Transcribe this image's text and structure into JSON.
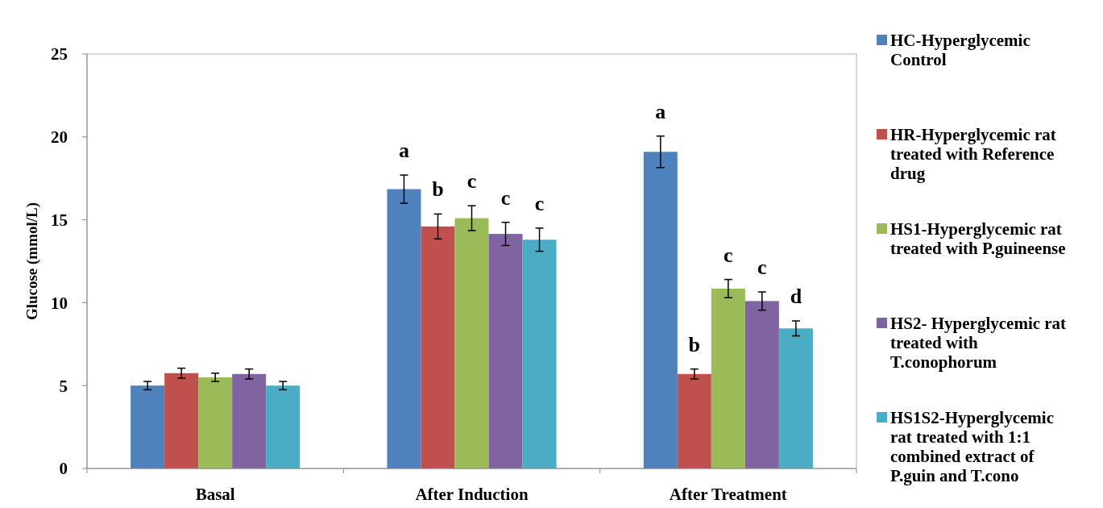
{
  "chart_data": {
    "type": "bar",
    "ylabel": "Glucose (mmol/L)",
    "categories": [
      "Basal",
      "After Induction",
      "After Treatment"
    ],
    "series": [
      {
        "name": "HC-Hyperglycemic Control",
        "color": "#4f81bd",
        "values": [
          5.0,
          16.85,
          19.1
        ],
        "errors": [
          0.25,
          0.85,
          0.95
        ],
        "value_labels": [
          null,
          "a",
          "a"
        ]
      },
      {
        "name": "HR-Hyperglycemic rat treated with Reference drug",
        "color": "#c0504d",
        "values": [
          5.75,
          14.6,
          5.7
        ],
        "errors": [
          0.3,
          0.75,
          0.3
        ],
        "value_labels": [
          null,
          "b",
          "b"
        ]
      },
      {
        "name": "HS1-Hyperglycemic rat treated with P.guineense",
        "color": "#9bbb59",
        "values": [
          5.5,
          15.1,
          10.85
        ],
        "errors": [
          0.25,
          0.75,
          0.55
        ],
        "value_labels": [
          null,
          "c",
          "c"
        ]
      },
      {
        "name": "HS2- Hyperglycemic rat treated with T.conophorum",
        "color": "#8064a2",
        "values": [
          5.7,
          14.15,
          10.1
        ],
        "errors": [
          0.3,
          0.7,
          0.55
        ],
        "value_labels": [
          null,
          "c",
          "c"
        ]
      },
      {
        "name": "HS1S2-Hyperglycemic rat treated with 1:1 combined extract of P.guin and T.cono",
        "color": "#4bacc6",
        "values": [
          5.0,
          13.8,
          8.45
        ],
        "errors": [
          0.25,
          0.7,
          0.45
        ],
        "value_labels": [
          null,
          "c",
          "d"
        ]
      }
    ],
    "ylim": [
      0,
      25
    ],
    "yticks": [
      0,
      5,
      10,
      15,
      20,
      25
    ],
    "grid": false,
    "legend": "right"
  }
}
